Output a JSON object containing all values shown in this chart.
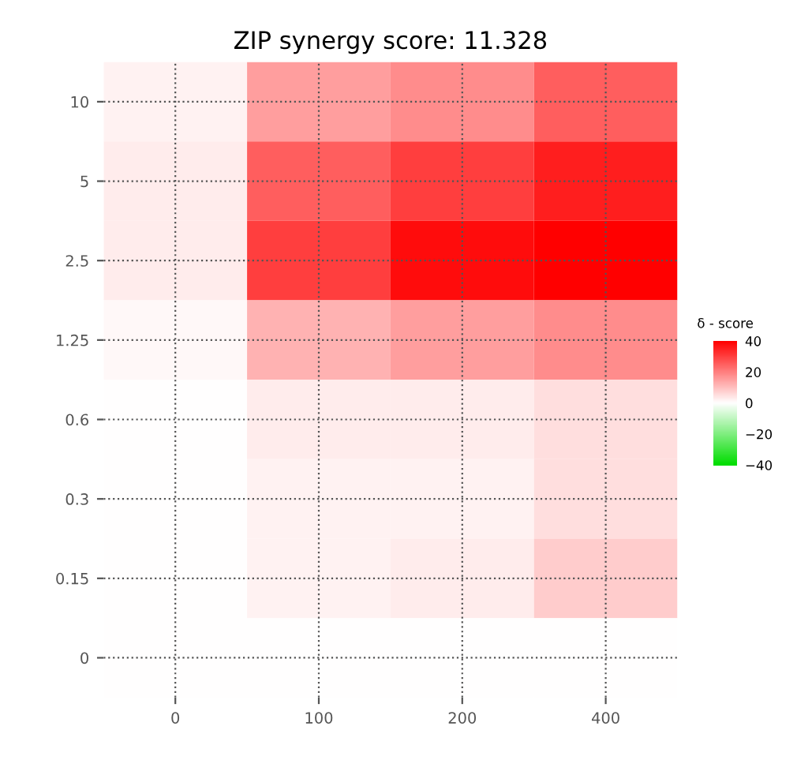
{
  "chart_data": {
    "type": "heatmap",
    "title": "ZIP synergy score: 11.328",
    "clabel": "δ - score",
    "categories": [
      "0",
      "100",
      "200",
      "400"
    ],
    "y_categories": [
      "10",
      "5",
      "2.5",
      "1.25",
      "0.6",
      "0.3",
      "0.15",
      "0"
    ],
    "cells": [
      [
        2,
        15,
        18,
        25
      ],
      [
        3,
        25,
        30,
        35
      ],
      [
        3,
        30,
        38,
        40
      ],
      [
        1,
        12,
        15,
        18
      ],
      [
        0,
        3,
        3,
        5
      ],
      [
        0,
        2,
        2,
        5
      ],
      [
        0,
        2,
        3,
        8
      ],
      [
        0,
        0,
        0,
        0
      ]
    ],
    "clim": [
      -40,
      40
    ],
    "cticks": [
      -40,
      -20,
      0,
      20,
      40
    ],
    "grid": true
  }
}
